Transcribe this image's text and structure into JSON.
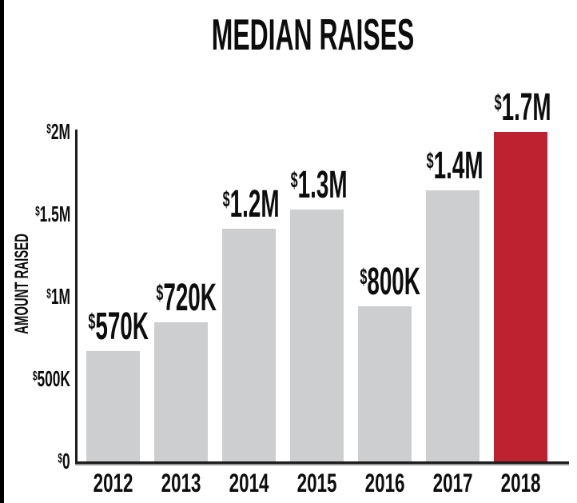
{
  "page": {
    "background_color": "#ffffff",
    "left_border_color": "#000000"
  },
  "chart_data": {
    "type": "bar",
    "title": "MEDIAN RAISES",
    "ylabel": "AMOUNT RAISED",
    "xlabel": "",
    "categories": [
      "2012",
      "2013",
      "2014",
      "2015",
      "2016",
      "2017",
      "2018"
    ],
    "values": [
      570000,
      720000,
      1200000,
      1300000,
      800000,
      1400000,
      1700000
    ],
    "bar_labels": [
      "$570K",
      "$720K",
      "$1.2M",
      "$1.3M",
      "$800K",
      "$1.4M",
      "$1.7M"
    ],
    "yticks": [
      {
        "value": 0,
        "label": "$0"
      },
      {
        "value": 500000,
        "label": "$500K"
      },
      {
        "value": 1000000,
        "label": "$1M"
      },
      {
        "value": 1500000,
        "label": "$1.5M"
      },
      {
        "value": 2000000,
        "label": "$2M"
      }
    ],
    "ylim": [
      0,
      2000000
    ],
    "bar_scale_max": 1700000,
    "grid": "off",
    "legend": "none",
    "highlight_category": "2018",
    "colors": {
      "bar_default": "#cdcecf",
      "bar_highlight": "#be2130",
      "text": "#0d0d0d",
      "axis": "#1c1c1c"
    }
  }
}
